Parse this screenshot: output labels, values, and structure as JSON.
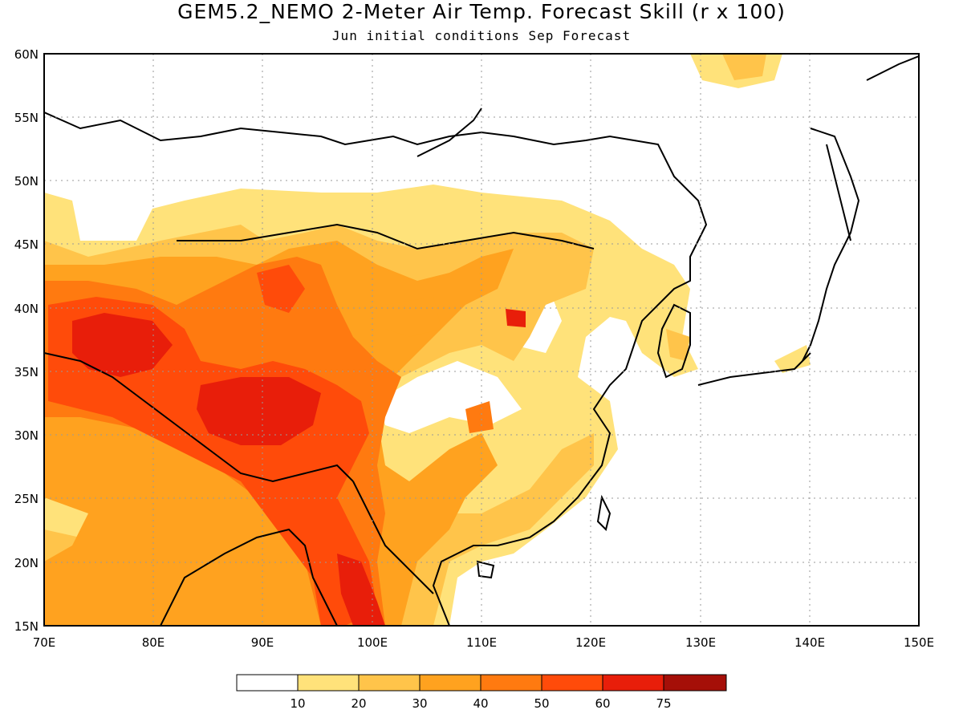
{
  "title": "GEM5.2_NEMO 2-Meter Air Temp. Forecast Skill (r x 100)",
  "subtitle": "Jun initial conditions  Sep Forecast",
  "map": {
    "lon_range": [
      70,
      150
    ],
    "lat_range": [
      15,
      60
    ],
    "lon_ticks": [
      "70E",
      "80E",
      "90E",
      "100E",
      "110E",
      "120E",
      "130E",
      "140E",
      "150E"
    ],
    "lat_ticks": [
      "60N",
      "55N",
      "50N",
      "45N",
      "40N",
      "35N",
      "30N",
      "25N",
      "20N",
      "15N"
    ],
    "gridlines": "dotted"
  },
  "colorbar": {
    "colors": [
      "#ffffff",
      "#ffe27a",
      "#ffc44a",
      "#ffa21f",
      "#ff7a10",
      "#ff4b0a",
      "#e81e0a",
      "#a50f08"
    ],
    "labels": [
      "10",
      "20",
      "30",
      "40",
      "50",
      "60",
      "75"
    ]
  },
  "palette": {
    "c1": "#ffe27a",
    "c2": "#ffc44a",
    "c3": "#ffa21f",
    "c4": "#ff7a10",
    "c5": "#ff4b0a",
    "c6": "#e81e0a",
    "c7": "#a50f08"
  }
}
